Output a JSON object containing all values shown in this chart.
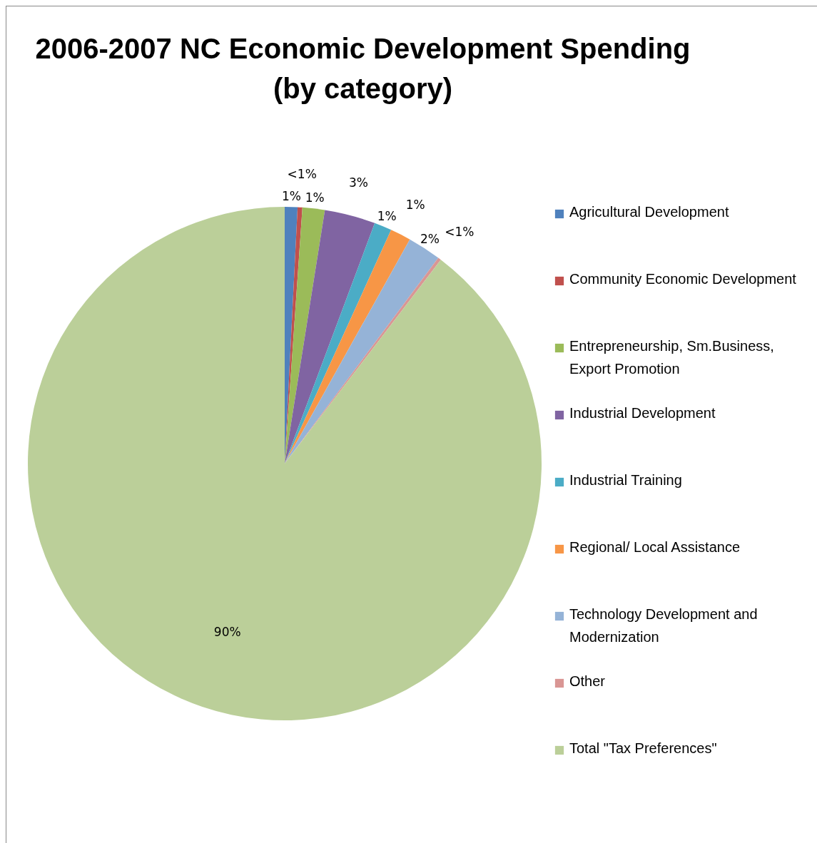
{
  "chart_data": {
    "type": "pie",
    "title": "2006-2007 NC Economic Development Spending (by category)",
    "categories": [
      "Agricultural Development",
      "Community Economic Development",
      "Entrepreneurship, Sm.Business, Export Promotion",
      "Industrial Development",
      "Industrial Training",
      "Regional/ Local Assistance",
      "Technology Development and Modernization",
      "Other",
      "Total \"Tax Preferences\""
    ],
    "values": [
      0.8,
      0.3,
      1.4,
      3.2,
      1.1,
      1.3,
      2.1,
      0.2,
      89.6
    ],
    "value_labels": [
      "1%",
      "<1%",
      "1%",
      "3%",
      "1%",
      "1%",
      "2%",
      "<1%",
      "90%"
    ],
    "colors": [
      "#4f81bd",
      "#c0504d",
      "#9bbb59",
      "#8064a2",
      "#4bacc6",
      "#f79646",
      "#95b3d7",
      "#d99694",
      "#bbcf99"
    ],
    "legend": "right"
  }
}
